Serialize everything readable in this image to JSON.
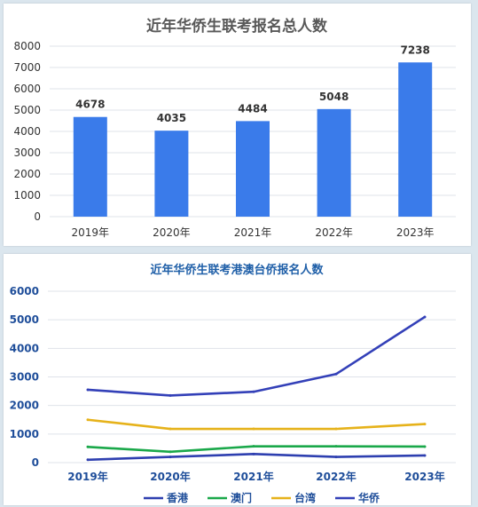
{
  "chart_data": [
    {
      "type": "bar",
      "title": "近年华侨生联考报名总人数",
      "categories": [
        "2019年",
        "2020年",
        "2021年",
        "2022年",
        "2023年"
      ],
      "values": [
        4678,
        4035,
        4484,
        5048,
        7238
      ],
      "data_labels": [
        "4678",
        "4035",
        "4484",
        "5048",
        "7238"
      ],
      "ylim": [
        0,
        8000
      ],
      "yticks": [
        "0",
        "1000",
        "2000",
        "3000",
        "4000",
        "5000",
        "6000",
        "7000",
        "8000"
      ],
      "grid": true,
      "colors": {
        "bar": "#3a7bea",
        "grid": "#dfe3ea",
        "title": "#595959"
      }
    },
    {
      "type": "line",
      "title": "近年华侨生联考港澳台侨报名人数",
      "categories": [
        "2019年",
        "2020年",
        "2021年",
        "2022年",
        "2023年"
      ],
      "ylim": [
        0,
        6000
      ],
      "yticks": [
        "0",
        "1000",
        "2000",
        "3000",
        "4000",
        "5000",
        "6000"
      ],
      "grid": true,
      "legend_position": "bottom",
      "series": [
        {
          "name": "香港",
          "values": [
            100,
            200,
            300,
            200,
            250
          ],
          "color": "#2e3fb0"
        },
        {
          "name": "澳门",
          "values": [
            550,
            380,
            570,
            570,
            560
          ],
          "color": "#1aa84a"
        },
        {
          "name": "台湾",
          "values": [
            1500,
            1180,
            1180,
            1180,
            1350
          ],
          "color": "#e6b21a"
        },
        {
          "name": "华侨",
          "values": [
            2550,
            2350,
            2480,
            3100,
            5100
          ],
          "color": "#3340b8"
        }
      ],
      "colors": {
        "grid": "#dfe3ea",
        "title": "#1f5fa8",
        "axis_text": "#1f4e9a"
      }
    }
  ]
}
